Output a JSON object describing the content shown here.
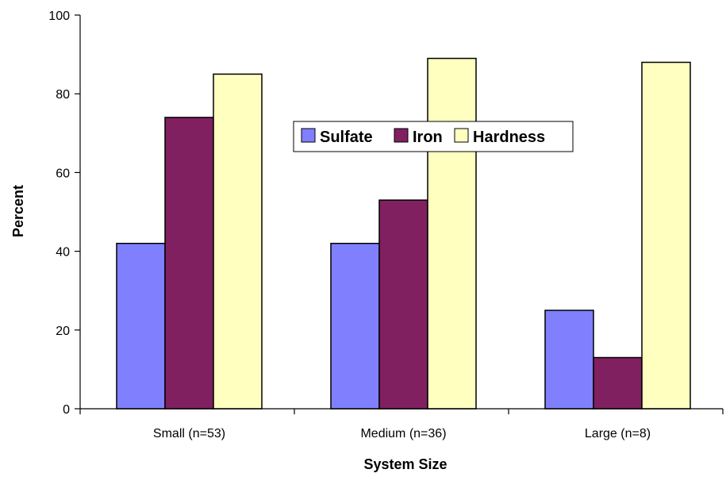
{
  "chart_data": {
    "type": "bar",
    "title": "",
    "xlabel": "System Size",
    "ylabel": "Percent",
    "ylim": [
      0,
      100
    ],
    "yticks": [
      "0",
      "20",
      "40",
      "60",
      "80",
      "100"
    ],
    "categories": [
      "Small (n=53)",
      "Medium (n=36)",
      "Large (n=8)"
    ],
    "series": [
      {
        "name": "Sulfate",
        "values": [
          42,
          42,
          25
        ],
        "color": "#8080ff"
      },
      {
        "name": "Iron",
        "values": [
          74,
          53,
          13
        ],
        "color": "#802060"
      },
      {
        "name": "Hardness",
        "values": [
          85,
          89,
          88
        ],
        "color": "#ffffc0"
      }
    ],
    "grid": false,
    "legend_position": "top-center"
  }
}
